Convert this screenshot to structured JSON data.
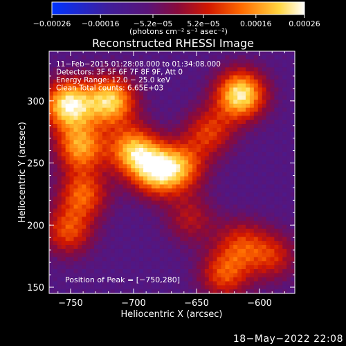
{
  "chart_data": {
    "type": "heatmap",
    "title": "Reconstructed RHESSI Image",
    "xlabel": "Heliocentric X (arcsec)",
    "ylabel": "Heliocentric Y (arcsec)",
    "xlim": [
      -767,
      -572
    ],
    "ylim": [
      145,
      340
    ],
    "x_ticks": [
      -750,
      -700,
      -650,
      -600
    ],
    "x_tick_labels": [
      "−750",
      "−700",
      "−650",
      "−600"
    ],
    "y_ticks": [
      150,
      200,
      250,
      300
    ],
    "y_tick_labels": [
      "150",
      "200",
      "250",
      "300"
    ],
    "colorbar": {
      "range": [
        -0.00026,
        0.00026
      ],
      "ticks": [
        -0.00026,
        -0.00016,
        -5.2e-05,
        5.2e-05,
        0.00016,
        0.00026
      ],
      "tick_labels": [
        "−0.00026",
        "−0.00016",
        "−5.2e−05",
        "5.2e−05",
        "0.00016",
        "0.00026"
      ],
      "units": "(photons cm⁻² s⁻¹ asec⁻²)",
      "colormap": "blue-purple-red-yellow-white"
    },
    "annotations": [
      "11−Feb−2015 01:28:08.000 to 01:34:08.000",
      "Detectors: 3F 5F 6F 7F 8F 9F, Att 0",
      "Energy Range: 12.0 − 25.0 keV",
      "Clean     Total counts: 6.65E+03"
    ],
    "peak_label": "Position of Peak = [−750,280]",
    "sources": [
      {
        "x": -752,
        "y": 297,
        "peak": 1.0
      },
      {
        "x": -718,
        "y": 300,
        "peak": 0.9
      },
      {
        "x": -700,
        "y": 260,
        "peak": 0.8
      },
      {
        "x": -742,
        "y": 263,
        "peak": 0.75
      },
      {
        "x": -682,
        "y": 243,
        "peak": 0.8
      },
      {
        "x": -662,
        "y": 247,
        "peak": 0.6
      },
      {
        "x": -615,
        "y": 305,
        "peak": 1.0
      },
      {
        "x": -740,
        "y": 225,
        "peak": 0.6
      },
      {
        "x": -752,
        "y": 195,
        "peak": 0.55
      },
      {
        "x": -640,
        "y": 275,
        "peak": 0.5
      },
      {
        "x": -590,
        "y": 175,
        "peak": 0.45
      },
      {
        "x": -628,
        "y": 160,
        "peak": 0.55
      },
      {
        "x": -615,
        "y": 185,
        "peak": 0.45
      },
      {
        "x": -655,
        "y": 205,
        "peak": 0.35
      }
    ]
  },
  "footer": {
    "timestamp": "18−May−2022 22:08"
  }
}
